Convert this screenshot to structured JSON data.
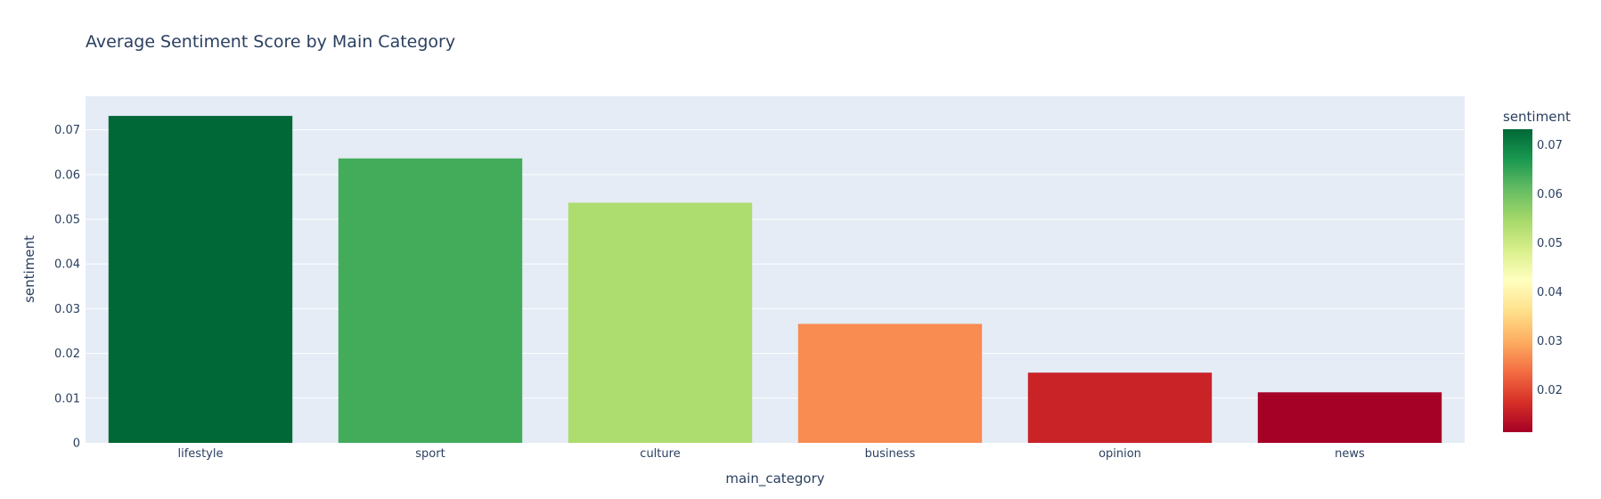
{
  "chart_data": {
    "type": "bar",
    "title": "Average Sentiment Score by Main Category",
    "xlabel": "main_category",
    "ylabel": "sentiment",
    "categories": [
      "lifestyle",
      "sport",
      "culture",
      "business",
      "opinion",
      "news"
    ],
    "values": [
      0.0731,
      0.0636,
      0.0537,
      0.0266,
      0.0157,
      0.0113
    ],
    "ylim": [
      0,
      0.0775
    ],
    "y_ticks": [
      0,
      0.01,
      0.02,
      0.03,
      0.04,
      0.05,
      0.06,
      0.07
    ],
    "y_tick_labels": [
      "0",
      "0.01",
      "0.02",
      "0.03",
      "0.04",
      "0.05",
      "0.06",
      "0.07"
    ],
    "grid": true,
    "plot_background": "#e5ecf6",
    "colorbar": {
      "title": "sentiment",
      "range": [
        0.0113,
        0.0731
      ],
      "ticks": [
        0.02,
        0.03,
        0.04,
        0.05,
        0.06,
        0.07
      ],
      "tick_labels": [
        "0.02",
        "0.03",
        "0.04",
        "0.05",
        "0.06",
        "0.07"
      ],
      "colorscale": [
        "#a50026",
        "#d73027",
        "#f46d43",
        "#fdae61",
        "#fee08b",
        "#ffffbf",
        "#d9ef8b",
        "#a6d96a",
        "#66bd63",
        "#1a9850",
        "#006837"
      ]
    }
  }
}
